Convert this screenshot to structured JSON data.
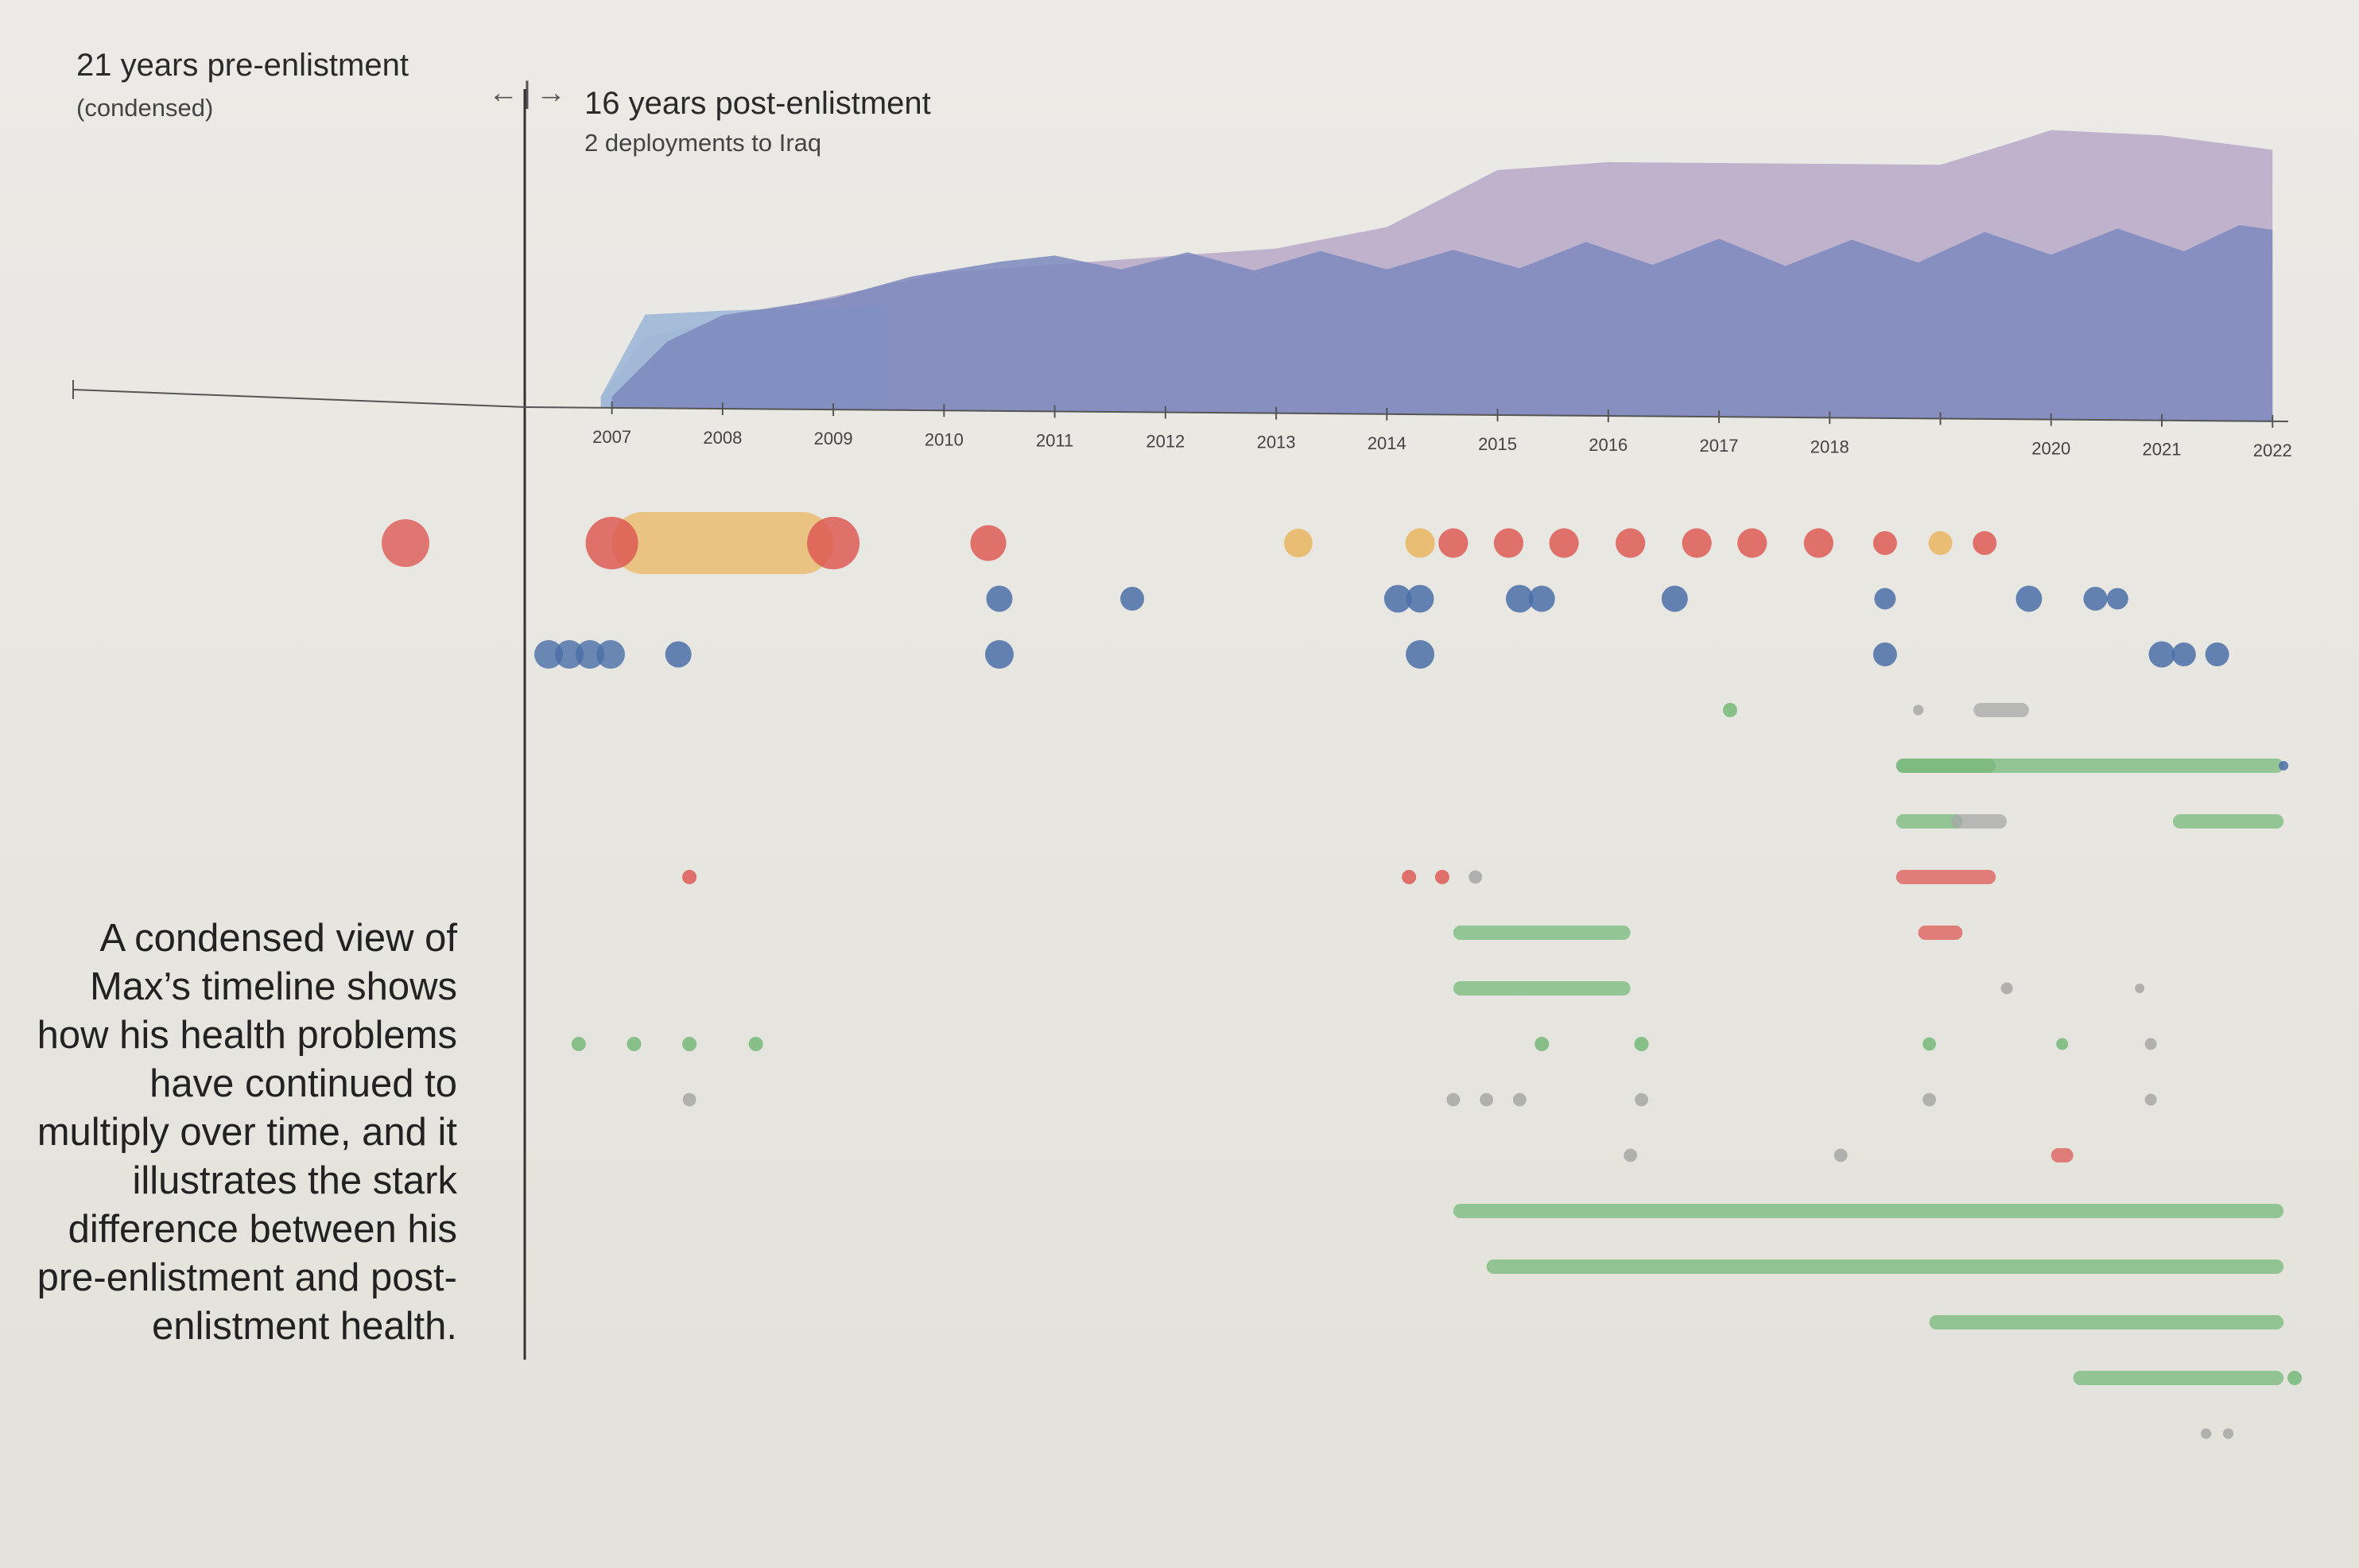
{
  "header": {
    "pre_title": "21 years pre-enlistment",
    "pre_sub": "(condensed)",
    "arrows": "←|→",
    "post_title": "16 years post-enlistment",
    "post_sub": "2 deployments to Iraq"
  },
  "caption": "A condensed view of Max’s timeline shows how his health problems have continued to multiply over time, and it illustrates the stark difference between his pre-enlistment and post-enlistment health.",
  "colors": {
    "red": "#dd5a55",
    "orange": "#e9b560",
    "blue": "#4a6fa8",
    "green": "#77b87a",
    "gray": "#a7a7a7",
    "area_outer": "#b6a8c9",
    "area_inner": "#7d88bd",
    "area_blue": "#9fb8d8"
  },
  "chart_data": {
    "type": "timeline",
    "x_axis": {
      "ticks": [
        "2007",
        "2008",
        "2009",
        "2010",
        "2011",
        "2012",
        "2013",
        "2014",
        "2015",
        "2016",
        "2017",
        "2018",
        "",
        "2020",
        "2021",
        "2022"
      ],
      "range": [
        2006.5,
        2022.3
      ]
    },
    "area_outer": [
      [
        2006.9,
        0.05
      ],
      [
        2007.3,
        0.32
      ],
      [
        2010,
        0.62
      ],
      [
        2011,
        0.66
      ],
      [
        2012,
        0.7
      ],
      [
        2013,
        0.74
      ],
      [
        2014,
        0.84
      ],
      [
        2015,
        1.1
      ],
      [
        2016,
        1.14
      ],
      [
        2017,
        1.14
      ],
      [
        2018,
        1.14
      ],
      [
        2019,
        1.14
      ],
      [
        2019.7,
        1.25
      ],
      [
        2020,
        1.3
      ],
      [
        2021,
        1.28
      ],
      [
        2022,
        1.22
      ]
    ],
    "area_blue": [
      [
        2006.9,
        0.05
      ],
      [
        2007.3,
        0.42
      ],
      [
        2008,
        0.44
      ],
      [
        2009,
        0.46
      ],
      [
        2009.5,
        0.47
      ]
    ],
    "area_inner": [
      [
        2007,
        0.05
      ],
      [
        2007.5,
        0.3
      ],
      [
        2008,
        0.42
      ],
      [
        2009,
        0.5
      ],
      [
        2009.7,
        0.6
      ],
      [
        2010.5,
        0.67
      ],
      [
        2011,
        0.7
      ],
      [
        2011.6,
        0.64
      ],
      [
        2012.2,
        0.72
      ],
      [
        2012.8,
        0.64
      ],
      [
        2013.4,
        0.73
      ],
      [
        2014,
        0.65
      ],
      [
        2014.6,
        0.74
      ],
      [
        2015.2,
        0.66
      ],
      [
        2015.8,
        0.78
      ],
      [
        2016.4,
        0.68
      ],
      [
        2017,
        0.8
      ],
      [
        2017.6,
        0.68
      ],
      [
        2018.2,
        0.8
      ],
      [
        2018.8,
        0.7
      ],
      [
        2019.4,
        0.84
      ],
      [
        2020,
        0.74
      ],
      [
        2020.6,
        0.86
      ],
      [
        2021.2,
        0.76
      ],
      [
        2021.7,
        0.88
      ],
      [
        2022,
        0.86
      ]
    ],
    "rows": [
      {
        "color": "red",
        "pre_dots": [
          1
        ],
        "dots": [
          [
            2007,
            "red",
            1.1
          ],
          [
            2009,
            "red",
            1.1
          ],
          [
            2010.4,
            "red",
            0.75
          ],
          [
            2013.2,
            "orange",
            0.6
          ],
          [
            2014.3,
            "orange",
            0.62
          ],
          [
            2014.6,
            "red",
            0.62
          ],
          [
            2015.1,
            "red",
            0.62
          ],
          [
            2015.6,
            "red",
            0.62
          ],
          [
            2016.2,
            "red",
            0.62
          ],
          [
            2016.8,
            "red",
            0.62
          ],
          [
            2017.3,
            "red",
            0.62
          ],
          [
            2017.9,
            "red",
            0.62
          ],
          [
            2018.5,
            "red",
            0.5
          ],
          [
            2019,
            "orange",
            0.5
          ],
          [
            2019.4,
            "red",
            0.5
          ]
        ],
        "bars": [
          [
            2007,
            2009,
            "orange"
          ]
        ]
      },
      {
        "color": "blue",
        "dots": [
          [
            2010.5,
            "blue",
            0.55
          ],
          [
            2011.7,
            "blue",
            0.5
          ],
          [
            2014.1,
            "blue",
            0.58
          ],
          [
            2014.3,
            "blue",
            0.58
          ],
          [
            2015.2,
            "blue",
            0.58
          ],
          [
            2015.4,
            "blue",
            0.55
          ],
          [
            2016.6,
            "blue",
            0.55
          ],
          [
            2018.5,
            "blue",
            0.45
          ],
          [
            2019.8,
            "blue",
            0.55
          ],
          [
            2020.4,
            "blue",
            0.5
          ],
          [
            2020.6,
            "blue",
            0.45
          ]
        ]
      },
      {
        "color": "blue",
        "pre_dots": [
          0.6,
          0.6,
          0.6,
          0.6
        ],
        "dots": [
          [
            2007.6,
            "blue",
            0.55
          ],
          [
            2010.5,
            "blue",
            0.6
          ],
          [
            2014.3,
            "blue",
            0.6
          ],
          [
            2018.5,
            "blue",
            0.5
          ],
          [
            2021,
            "blue",
            0.55
          ],
          [
            2021.2,
            "blue",
            0.5
          ],
          [
            2021.5,
            "blue",
            0.5
          ]
        ]
      },
      {
        "color": "green",
        "dots": [
          [
            2017.1,
            "green",
            0.3
          ],
          [
            2018.8,
            "gray",
            0.22
          ]
        ],
        "bars": [
          [
            2019.3,
            2019.8,
            "gray"
          ]
        ]
      },
      {
        "color": "green",
        "bars": [
          [
            2018.6,
            2022.1,
            "green"
          ],
          [
            2018.6,
            2019.5,
            "green"
          ]
        ],
        "dots": [
          [
            2022.1,
            "blue",
            0.2
          ]
        ]
      },
      {
        "color": "green",
        "bars": [
          [
            2018.6,
            2019.2,
            "green"
          ],
          [
            2019.1,
            2019.6,
            "gray"
          ],
          [
            2021.1,
            2022.1,
            "green"
          ]
        ]
      },
      {
        "color": "red",
        "dots": [
          [
            2007.7,
            "red",
            0.3
          ],
          [
            2014.2,
            "red",
            0.3
          ],
          [
            2014.5,
            "red",
            0.3
          ],
          [
            2014.8,
            "gray",
            0.28
          ]
        ],
        "bars": [
          [
            2018.6,
            2019.5,
            "red"
          ]
        ]
      },
      {
        "color": "green",
        "bars": [
          [
            2014.6,
            2016.2,
            "green"
          ],
          [
            2018.8,
            2019.2,
            "red"
          ]
        ]
      },
      {
        "color": "green",
        "bars": [
          [
            2014.6,
            2016.2,
            "green"
          ]
        ],
        "dots": [
          [
            2019.6,
            "gray",
            0.25
          ],
          [
            2020.8,
            "gray",
            0.2
          ]
        ]
      },
      {
        "color": "green",
        "dots": [
          [
            2006.7,
            "green",
            0.3
          ],
          [
            2007.2,
            "green",
            0.3
          ],
          [
            2007.7,
            "green",
            0.3
          ],
          [
            2008.3,
            "green",
            0.3
          ],
          [
            2015.4,
            "green",
            0.3
          ],
          [
            2016.3,
            "green",
            0.3
          ],
          [
            2018.9,
            "green",
            0.28
          ],
          [
            2020.1,
            "green",
            0.25
          ],
          [
            2020.9,
            "gray",
            0.25
          ]
        ]
      },
      {
        "color": "gray",
        "dots": [
          [
            2007.7,
            "gray",
            0.28
          ],
          [
            2014.6,
            "gray",
            0.28
          ],
          [
            2014.9,
            "gray",
            0.28
          ],
          [
            2015.2,
            "gray",
            0.28
          ],
          [
            2016.3,
            "gray",
            0.28
          ],
          [
            2018.9,
            "gray",
            0.28
          ],
          [
            2020.9,
            "gray",
            0.25
          ]
        ]
      },
      {
        "color": "gray",
        "dots": [
          [
            2016.2,
            "gray",
            0.28
          ],
          [
            2018.1,
            "gray",
            0.28
          ]
        ],
        "bars": [
          [
            2020,
            2020.2,
            "red"
          ]
        ]
      },
      {
        "color": "green",
        "bars": [
          [
            2014.6,
            2022.1,
            "green"
          ]
        ]
      },
      {
        "color": "green",
        "bars": [
          [
            2014.9,
            2022.1,
            "green"
          ]
        ]
      },
      {
        "color": "green",
        "bars": [
          [
            2018.9,
            2022.1,
            "green"
          ]
        ]
      },
      {
        "color": "green",
        "bars": [
          [
            2020.2,
            2022.1,
            "green"
          ]
        ],
        "dots": [
          [
            2022.2,
            "green",
            0.3
          ]
        ]
      },
      {
        "color": "gray",
        "dots": [
          [
            2021.4,
            "gray",
            0.22
          ],
          [
            2021.6,
            "gray",
            0.22
          ]
        ]
      }
    ]
  }
}
